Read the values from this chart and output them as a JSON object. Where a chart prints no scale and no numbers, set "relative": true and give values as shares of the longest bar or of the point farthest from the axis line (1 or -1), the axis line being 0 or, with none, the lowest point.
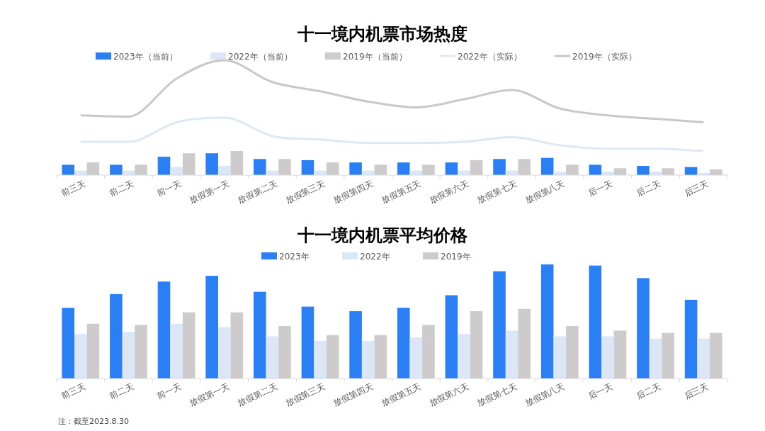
{
  "chart_data": [
    {
      "type": "bar",
      "title": "十一境内机票市场热度",
      "relative": true,
      "legend": "top",
      "categories": [
        "前三天",
        "前二天",
        "前一天",
        "放假第一天",
        "放假第二天",
        "放假第三天",
        "放假第四天",
        "放假第五天",
        "放假第六天",
        "放假第七天",
        "放假第八天",
        "后一天",
        "后二天",
        "后三天"
      ],
      "series": [
        {
          "name": "2023年（当前）",
          "color": "#2a7ff5",
          "values": [
            0.09,
            0.09,
            0.16,
            0.19,
            0.14,
            0.13,
            0.11,
            0.11,
            0.11,
            0.14,
            0.15,
            0.09,
            0.08,
            0.07
          ]
        },
        {
          "name": "2022年（当前）",
          "color": "#dbe7f6",
          "values": [
            0.04,
            0.04,
            0.07,
            0.08,
            0.04,
            0.04,
            0.04,
            0.04,
            0.04,
            0.04,
            0.03,
            0.03,
            0.03,
            0.02
          ]
        },
        {
          "name": "2019年（当前）",
          "color": "#cdcbcb",
          "values": [
            0.11,
            0.09,
            0.19,
            0.21,
            0.14,
            0.11,
            0.09,
            0.09,
            0.13,
            0.14,
            0.09,
            0.06,
            0.06,
            0.05
          ]
        },
        {
          "name": "2022年（实际）",
          "type": "line",
          "color": "#dde8f5",
          "values": [
            0.29,
            0.29,
            0.46,
            0.5,
            0.34,
            0.31,
            0.28,
            0.28,
            0.29,
            0.33,
            0.26,
            0.23,
            0.23,
            0.21
          ]
        },
        {
          "name": "2019年（实际）",
          "type": "line",
          "color": "#c8c8c8",
          "values": [
            0.52,
            0.51,
            0.84,
            1,
            0.81,
            0.73,
            0.64,
            0.59,
            0.66,
            0.74,
            0.58,
            0.52,
            0.49,
            0.46
          ]
        }
      ]
    },
    {
      "type": "bar",
      "title": "十一境内机票平均价格",
      "relative": true,
      "legend": "top",
      "categories": [
        "前三天",
        "前二天",
        "前一天",
        "放假第一天",
        "放假第二天",
        "放假第三天",
        "放假第四天",
        "放假第五天",
        "放假第六天",
        "放假第七天",
        "放假第八天",
        "后一天",
        "后二天",
        "后三天"
      ],
      "series": [
        {
          "name": "2023年",
          "color": "#2a7ff5",
          "values": [
            0.62,
            0.74,
            0.85,
            0.9,
            0.76,
            0.63,
            0.59,
            0.62,
            0.73,
            0.94,
            1,
            0.99,
            0.88,
            0.69
          ]
        },
        {
          "name": "2022年",
          "color": "#dbe7f6",
          "values": [
            0.39,
            0.41,
            0.48,
            0.45,
            0.37,
            0.33,
            0.33,
            0.36,
            0.39,
            0.42,
            0.37,
            0.37,
            0.35,
            0.35
          ]
        },
        {
          "name": "2019年",
          "color": "#cdcbcb",
          "values": [
            0.48,
            0.47,
            0.58,
            0.58,
            0.46,
            0.38,
            0.38,
            0.47,
            0.59,
            0.61,
            0.46,
            0.42,
            0.4,
            0.4
          ]
        }
      ],
      "annotations": [
        "注：截至2023.8.30"
      ]
    }
  ]
}
